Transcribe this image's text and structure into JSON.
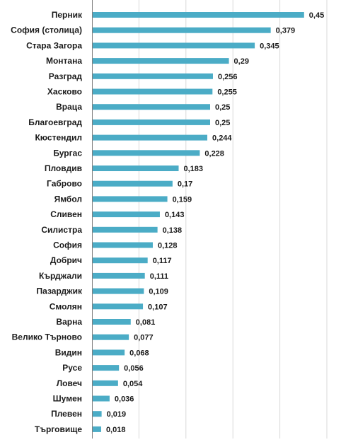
{
  "chart_data": {
    "type": "bar",
    "orientation": "horizontal",
    "title": "",
    "xlabel": "",
    "ylabel": "",
    "xlim": [
      0,
      0.5
    ],
    "grid": true,
    "legend": "none",
    "bar_color": "#4bacc6",
    "categories": [
      "Перник",
      "София (столица)",
      "Стара Загора",
      "Монтана",
      "Разград",
      "Хасково",
      "Враца",
      "Благоевград",
      "Кюстендил",
      "Бургас",
      "Пловдив",
      "Габрово",
      "Ямбол",
      "Сливен",
      "Силистра",
      "София",
      "Добрич",
      "Кърджали",
      "Пазарджик",
      "Смолян",
      "Варна",
      "Велико Търново",
      "Видин",
      "Русе",
      "Ловеч",
      "Шумен",
      "Плевен",
      "Търговище"
    ],
    "values": [
      0.45,
      0.379,
      0.345,
      0.29,
      0.256,
      0.255,
      0.25,
      0.25,
      0.244,
      0.228,
      0.183,
      0.17,
      0.159,
      0.143,
      0.138,
      0.128,
      0.117,
      0.111,
      0.109,
      0.107,
      0.081,
      0.077,
      0.068,
      0.056,
      0.054,
      0.036,
      0.019,
      0.018
    ],
    "value_labels": [
      "0,45",
      "0,379",
      "0,345",
      "0,29",
      "0,256",
      "0,255",
      "0,25",
      "0,25",
      "0,244",
      "0,228",
      "0,183",
      "0,17",
      "0,159",
      "0,143",
      "0,138",
      "0,128",
      "0,117",
      "0,111",
      "0,109",
      "0,107",
      "0,081",
      "0,077",
      "0,068",
      "0,056",
      "0,054",
      "0,036",
      "0,019",
      "0,018"
    ]
  }
}
